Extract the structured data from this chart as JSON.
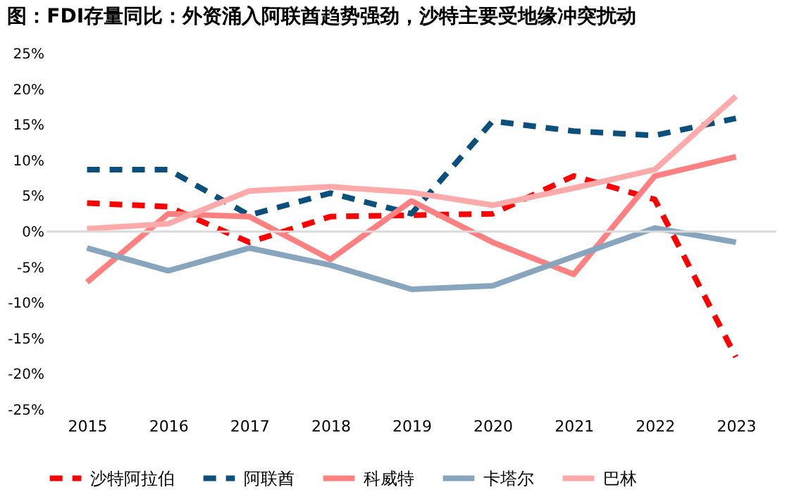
{
  "chart_data": {
    "type": "line",
    "title": "图：FDI存量同比：外资涌入阿联酋趋势强劲，沙特主要受地缘冲突扰动",
    "categories": [
      "2015",
      "2016",
      "2017",
      "2018",
      "2019",
      "2020",
      "2021",
      "2022",
      "2023"
    ],
    "series": [
      {
        "name": "沙特阿拉伯",
        "color": "#ff0000",
        "line_style": "dashed",
        "values": [
          4.0,
          3.5,
          -1.5,
          2.1,
          2.3,
          2.5,
          7.8,
          4.5,
          -17.6
        ]
      },
      {
        "name": "阿联酋",
        "color": "#0b4f7c",
        "line_style": "dashed",
        "values": [
          8.7,
          8.7,
          2.3,
          5.4,
          2.5,
          15.5,
          14.1,
          13.5,
          15.9
        ]
      },
      {
        "name": "科威特",
        "color": "#ff8080",
        "line_style": "solid",
        "values": [
          -7.1,
          2.5,
          2.1,
          -3.9,
          4.3,
          -1.5,
          -6.0,
          7.8,
          10.5
        ]
      },
      {
        "name": "卡塔尔",
        "color": "#87a5bd",
        "line_style": "solid",
        "values": [
          -2.3,
          -5.5,
          -2.3,
          -4.7,
          -8.1,
          -7.6,
          -3.5,
          0.5,
          -1.5
        ]
      },
      {
        "name": "巴林",
        "color": "#ffaaaa",
        "line_style": "solid",
        "values": [
          0.4,
          1.1,
          5.7,
          6.3,
          5.5,
          3.7,
          6.1,
          8.7,
          19.0
        ]
      }
    ],
    "ylim": [
      -25,
      25
    ],
    "yticks": [
      {
        "value": 25,
        "label": "25%"
      },
      {
        "value": 20,
        "label": "20%"
      },
      {
        "value": 15,
        "label": "15%"
      },
      {
        "value": 10,
        "label": "10%"
      },
      {
        "value": 5,
        "label": "5%"
      },
      {
        "value": 0,
        "label": "0%"
      },
      {
        "value": -5,
        "label": "-5%"
      },
      {
        "value": -10,
        "label": "-10%"
      },
      {
        "value": -15,
        "label": "-15%"
      },
      {
        "value": -20,
        "label": "-20%"
      },
      {
        "value": -25,
        "label": "-25%"
      }
    ],
    "ref_lines": [
      {
        "axis": "y",
        "value": 0,
        "color": "#d9d9d9"
      }
    ],
    "grid": false,
    "legend": "bottom",
    "marker": "none"
  }
}
